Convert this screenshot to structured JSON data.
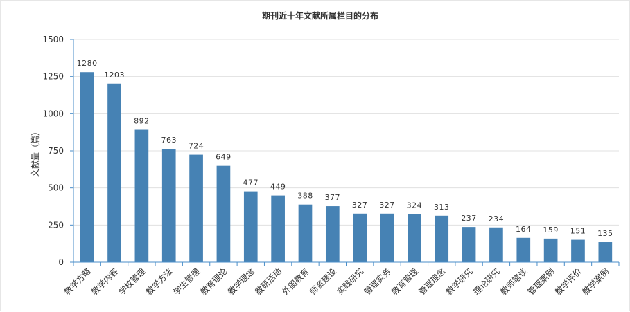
{
  "chart_data": {
    "type": "bar",
    "title": "期刊近十年文献所属栏目的分布",
    "ylabel": "文献量（篇）",
    "xlabel": "",
    "ylim": [
      0,
      1500
    ],
    "yticks": [
      0,
      250,
      500,
      750,
      1000,
      1250,
      1500
    ],
    "grid": true,
    "categories": [
      "教学方略",
      "教学内容",
      "学校管理",
      "教学方法",
      "学生管理",
      "教育理论",
      "教学理念",
      "教研活动",
      "外国教育",
      "师资建设",
      "实践研究",
      "管理实务",
      "教育管理",
      "管理理念",
      "教学研究",
      "理论研究",
      "教师笔谈",
      "管理案例",
      "教学评价",
      "教学案例"
    ],
    "values": [
      1280,
      1203,
      892,
      763,
      724,
      649,
      477,
      449,
      388,
      377,
      327,
      327,
      324,
      313,
      237,
      234,
      164,
      159,
      151,
      135
    ],
    "colors": {
      "bar": "#4682b4",
      "axis": "#4a8ec9",
      "grid": "#e0e0e0",
      "text": "#333333"
    }
  }
}
